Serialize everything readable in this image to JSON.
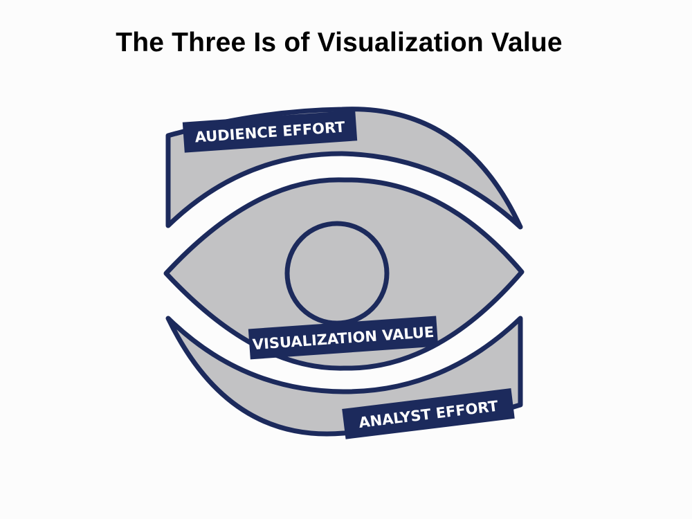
{
  "title": "The Three Is of Visualization Value",
  "labels": {
    "audience_effort": "AUDIENCE EFFORT",
    "visualization_value": "VISUALIZATION VALUE",
    "analyst_effort": "ANALYST EFFORT"
  },
  "colors": {
    "outline": "#1c2a5c",
    "fill": "#c2c2c4",
    "label_bg": "#1c2a5c",
    "label_text": "#ffffff",
    "background": "#fcfcfc"
  }
}
